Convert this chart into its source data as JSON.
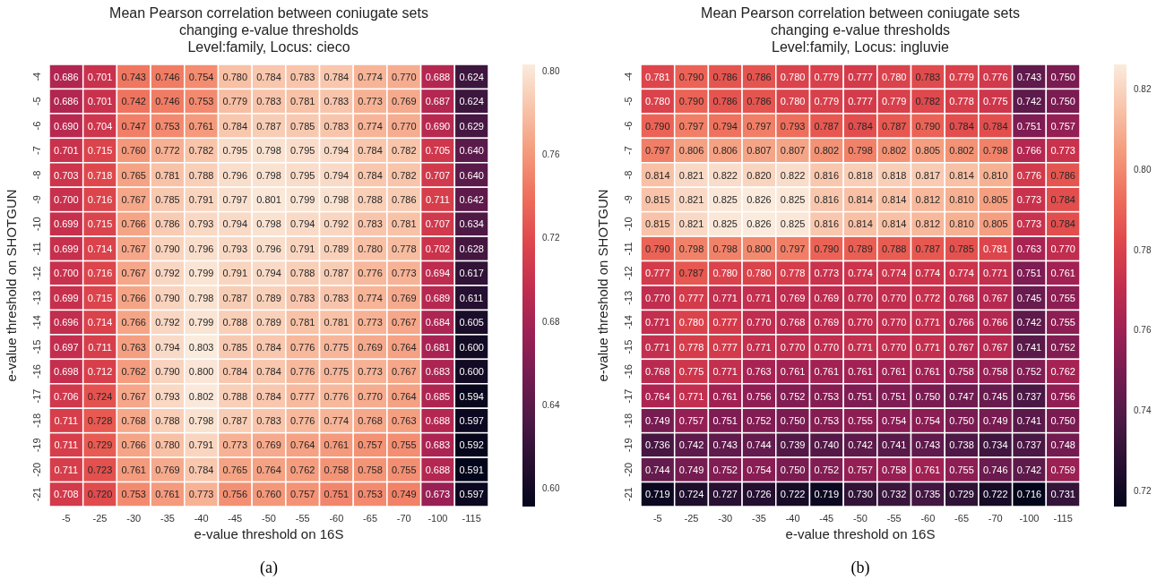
{
  "chart_data": [
    {
      "type": "heatmap",
      "title": "Mean Pearson correlation between coniugate sets\nchanging e-value thresholds\nLevel:family, Locus: cieco",
      "xlabel": "e-value threshold on 16S",
      "ylabel": "e-value threshold on SHOTGUN",
      "annotations": [
        "(a)"
      ],
      "categories": [
        "-5",
        "-25",
        "-30",
        "-35",
        "-40",
        "-45",
        "-50",
        "-55",
        "-60",
        "-65",
        "-70",
        "-100",
        "-115"
      ],
      "y_categories": [
        "-4",
        "-5",
        "-6",
        "-7",
        "-8",
        "-9",
        "-10",
        "-11",
        "-12",
        "-13",
        "-14",
        "-15",
        "-16",
        "-17",
        "-18",
        "-19",
        "-20",
        "-21"
      ],
      "clim": [
        0.591,
        0.803
      ],
      "cell_labels": [
        [
          "0.686",
          "0.701",
          "0.743",
          "0.746",
          "0.754",
          "0.780",
          "0.784",
          "0.783",
          "0.784",
          "0.774",
          "0.770",
          "0.688",
          "0.624"
        ],
        [
          "0.686",
          "0.701",
          "0.742",
          "0.746",
          "0.753",
          "0.779",
          "0.783",
          "0.781",
          "0.783",
          "0.773",
          "0.769",
          "0.687",
          "0.624"
        ],
        [
          "0.690",
          "0.704",
          "0.747",
          "0.753",
          "0.761",
          "0.784",
          "0.787",
          "0.785",
          "0.783",
          "0.774",
          "0.770",
          "0.690",
          "0.629"
        ],
        [
          "0.701",
          "0.715",
          "0.760",
          "0.772",
          "0.782",
          "0.795",
          "0.798",
          "0.795",
          "0.794",
          "0.784",
          "0.782",
          "0.705",
          "0.640"
        ],
        [
          "0.703",
          "0.718",
          "0.765",
          "0.781",
          "0.788",
          "0.796",
          "0.798",
          "0.795",
          "0.794",
          "0.784",
          "0.782",
          "0.707",
          "0.640"
        ],
        [
          "0.700",
          "0.716",
          "0.767",
          "0.785",
          "0.791",
          "0.797",
          "0.801",
          "0.799",
          "0.798",
          "0.788",
          "0.786",
          "0.711",
          "0.642"
        ],
        [
          "0.699",
          "0.715",
          "0.766",
          "0.786",
          "0.793",
          "0.794",
          "0.798",
          "0.794",
          "0.792",
          "0.783",
          "0.781",
          "0.707",
          "0.634"
        ],
        [
          "0.699",
          "0.714",
          "0.767",
          "0.790",
          "0.796",
          "0.793",
          "0.796",
          "0.791",
          "0.789",
          "0.780",
          "0.778",
          "0.702",
          "0.628"
        ],
        [
          "0.700",
          "0.716",
          "0.767",
          "0.792",
          "0.799",
          "0.791",
          "0.794",
          "0.788",
          "0.787",
          "0.776",
          "0.773",
          "0.694",
          "0.617"
        ],
        [
          "0.699",
          "0.715",
          "0.766",
          "0.790",
          "0.798",
          "0.787",
          "0.789",
          "0.783",
          "0.783",
          "0.774",
          "0.769",
          "0.689",
          "0.611"
        ],
        [
          "0.696",
          "0.714",
          "0.766",
          "0.792",
          "0.799",
          "0.788",
          "0.789",
          "0.781",
          "0.781",
          "0.773",
          "0.767",
          "0.684",
          "0.605"
        ],
        [
          "0.697",
          "0.711",
          "0.763",
          "0.794",
          "0.803",
          "0.785",
          "0.784",
          "0.776",
          "0.775",
          "0.769",
          "0.764",
          "0.681",
          "0.600"
        ],
        [
          "0.698",
          "0.712",
          "0.762",
          "0.790",
          "0.800",
          "0.784",
          "0.784",
          "0.776",
          "0.775",
          "0.773",
          "0.767",
          "0.683",
          "0.600"
        ],
        [
          "0.706",
          "0.724",
          "0.767",
          "0.793",
          "0.802",
          "0.788",
          "0.784",
          "0.777",
          "0.776",
          "0.770",
          "0.764",
          "0.685",
          "0.594"
        ],
        [
          "0.711",
          "0.728",
          "0.768",
          "0.788",
          "0.798",
          "0.787",
          "0.783",
          "0.776",
          "0.774",
          "0.768",
          "0.763",
          "0.688",
          "0.597"
        ],
        [
          "0.711",
          "0.729",
          "0.766",
          "0.780",
          "0.791",
          "0.773",
          "0.769",
          "0.764",
          "0.761",
          "0.757",
          "0.755",
          "0.683",
          "0.592"
        ],
        [
          "0.711",
          "0.723",
          "0.761",
          "0.769",
          "0.784",
          "0.765",
          "0.764",
          "0.762",
          "0.758",
          "0.758",
          "0.755",
          "0.688",
          "0.591"
        ],
        [
          "0.708",
          "0.720",
          "0.753",
          "0.761",
          "0.773",
          "0.756",
          "0.760",
          "0.757",
          "0.751",
          "0.753",
          "0.749",
          "0.673",
          "0.597"
        ]
      ],
      "cticks": [
        {
          "value": 0.6,
          "label": "0.60"
        },
        {
          "value": 0.64,
          "label": "0.64"
        },
        {
          "value": 0.68,
          "label": "0.68"
        },
        {
          "value": 0.72,
          "label": "0.72"
        },
        {
          "value": 0.76,
          "label": "0.76"
        },
        {
          "value": 0.8,
          "label": "0.80"
        }
      ],
      "cells": [
        [
          0.686,
          0.701,
          0.743,
          0.746,
          0.754,
          0.78,
          0.784,
          0.783,
          0.784,
          0.774,
          0.77,
          0.688,
          0.624
        ],
        [
          0.686,
          0.701,
          0.742,
          0.746,
          0.753,
          0.779,
          0.783,
          0.781,
          0.783,
          0.773,
          0.769,
          0.687,
          0.624
        ],
        [
          0.69,
          0.704,
          0.747,
          0.753,
          0.761,
          0.784,
          0.787,
          0.785,
          0.783,
          0.774,
          0.77,
          0.69,
          0.629
        ],
        [
          0.701,
          0.715,
          0.76,
          0.772,
          0.782,
          0.795,
          0.798,
          0.795,
          0.794,
          0.784,
          0.782,
          0.705,
          0.64
        ],
        [
          0.703,
          0.718,
          0.765,
          0.781,
          0.788,
          0.796,
          0.798,
          0.795,
          0.794,
          0.784,
          0.782,
          0.707,
          0.64
        ],
        [
          0.7,
          0.716,
          0.767,
          0.785,
          0.791,
          0.797,
          0.801,
          0.799,
          0.798,
          0.788,
          0.786,
          0.711,
          0.642
        ],
        [
          0.699,
          0.715,
          0.766,
          0.786,
          0.793,
          0.794,
          0.798,
          0.794,
          0.792,
          0.783,
          0.781,
          0.707,
          0.634
        ],
        [
          0.699,
          0.714,
          0.767,
          0.79,
          0.796,
          0.793,
          0.796,
          0.791,
          0.789,
          0.78,
          0.778,
          0.702,
          0.628
        ],
        [
          0.7,
          0.716,
          0.767,
          0.792,
          0.799,
          0.791,
          0.794,
          0.788,
          0.787,
          0.776,
          0.773,
          0.694,
          0.617
        ],
        [
          0.699,
          0.715,
          0.766,
          0.79,
          0.798,
          0.787,
          0.789,
          0.783,
          0.783,
          0.774,
          0.769,
          0.689,
          0.611
        ],
        [
          0.696,
          0.714,
          0.766,
          0.792,
          0.799,
          0.788,
          0.789,
          0.781,
          0.781,
          0.773,
          0.767,
          0.684,
          0.605
        ],
        [
          0.697,
          0.711,
          0.763,
          0.794,
          0.803,
          0.785,
          0.784,
          0.776,
          0.775,
          0.769,
          0.764,
          0.681,
          0.6
        ],
        [
          0.698,
          0.712,
          0.762,
          0.79,
          0.8,
          0.784,
          0.784,
          0.776,
          0.775,
          0.773,
          0.767,
          0.683,
          0.6
        ],
        [
          0.706,
          0.724,
          0.767,
          0.793,
          0.802,
          0.788,
          0.784,
          0.777,
          0.776,
          0.77,
          0.764,
          0.685,
          0.594
        ],
        [
          0.711,
          0.728,
          0.768,
          0.788,
          0.798,
          0.787,
          0.783,
          0.776,
          0.774,
          0.768,
          0.763,
          0.688,
          0.597
        ],
        [
          0.711,
          0.729,
          0.766,
          0.78,
          0.791,
          0.773,
          0.769,
          0.764,
          0.761,
          0.757,
          0.755,
          0.683,
          0.592
        ],
        [
          0.711,
          0.723,
          0.761,
          0.769,
          0.784,
          0.765,
          0.764,
          0.762,
          0.758,
          0.758,
          0.755,
          0.688,
          0.591
        ],
        [
          0.708,
          0.72,
          0.753,
          0.761,
          0.773,
          0.756,
          0.76,
          0.757,
          0.751,
          0.753,
          0.749,
          0.673,
          0.597
        ]
      ]
    },
    {
      "type": "heatmap",
      "title": "Mean Pearson correlation between coniugate sets\nchanging e-value thresholds\nLevel:family, Locus: ingluvie",
      "xlabel": "e-value threshold on 16S",
      "ylabel": "e-value threshold on SHOTGUN",
      "annotations": [
        "(b)"
      ],
      "categories": [
        "-5",
        "-25",
        "-30",
        "-35",
        "-40",
        "-45",
        "-50",
        "-55",
        "-60",
        "-65",
        "-70",
        "-100",
        "-115"
      ],
      "y_categories": [
        "-4",
        "-5",
        "-6",
        "-7",
        "-8",
        "-9",
        "-10",
        "-11",
        "-12",
        "-13",
        "-14",
        "-15",
        "-16",
        "-17",
        "-18",
        "-19",
        "-20",
        "-21"
      ],
      "clim": [
        0.716,
        0.826
      ],
      "cell_labels": [
        [
          "0.781",
          "0.790",
          "0.786",
          "0.786",
          "0.780",
          "0.779",
          "0.777",
          "0.780",
          "0.783",
          "0.779",
          "0.776",
          "0.743",
          "0.750"
        ],
        [
          "0.780",
          "0.790",
          "0.786",
          "0.786",
          "0.780",
          "0.779",
          "0.777",
          "0.779",
          "0.782",
          "0.778",
          "0.775",
          "0.742",
          "0.750"
        ],
        [
          "0.790",
          "0.797",
          "0.794",
          "0.797",
          "0.793",
          "0.787",
          "0.784",
          "0.787",
          "0.790",
          "0.784",
          "0.784",
          "0.751",
          "0.757"
        ],
        [
          "0.797",
          "0.806",
          "0.806",
          "0.807",
          "0.807",
          "0.802",
          "0.798",
          "0.802",
          "0.805",
          "0.802",
          "0.798",
          "0.766",
          "0.773"
        ],
        [
          "0.814",
          "0.821",
          "0.822",
          "0.820",
          "0.822",
          "0.816",
          "0.818",
          "0.818",
          "0.817",
          "0.814",
          "0.810",
          "0.776",
          "0.786"
        ],
        [
          "0.815",
          "0.821",
          "0.825",
          "0.826",
          "0.825",
          "0.816",
          "0.814",
          "0.814",
          "0.812",
          "0.810",
          "0.805",
          "0.773",
          "0.784"
        ],
        [
          "0.815",
          "0.821",
          "0.825",
          "0.826",
          "0.825",
          "0.816",
          "0.814",
          "0.814",
          "0.812",
          "0.810",
          "0.805",
          "0.773",
          "0.784"
        ],
        [
          "0.790",
          "0.798",
          "0.798",
          "0.800",
          "0.797",
          "0.790",
          "0.789",
          "0.788",
          "0.787",
          "0.785",
          "0.781",
          "0.763",
          "0.770"
        ],
        [
          "0.777",
          "0.787",
          "0.780",
          "0.780",
          "0.778",
          "0.773",
          "0.774",
          "0.774",
          "0.774",
          "0.774",
          "0.771",
          "0.751",
          "0.761"
        ],
        [
          "0.770",
          "0.777",
          "0.771",
          "0.771",
          "0.769",
          "0.769",
          "0.770",
          "0.770",
          "0.772",
          "0.768",
          "0.767",
          "0.745",
          "0.755"
        ],
        [
          "0.771",
          "0.780",
          "0.777",
          "0.770",
          "0.768",
          "0.769",
          "0.770",
          "0.770",
          "0.771",
          "0.766",
          "0.766",
          "0.742",
          "0.755"
        ],
        [
          "0.771",
          "0.778",
          "0.777",
          "0.771",
          "0.770",
          "0.770",
          "0.771",
          "0.770",
          "0.771",
          "0.767",
          "0.767",
          "0.741",
          "0.752"
        ],
        [
          "0.768",
          "0.775",
          "0.771",
          "0.763",
          "0.761",
          "0.761",
          "0.761",
          "0.761",
          "0.761",
          "0.758",
          "0.758",
          "0.752",
          "0.762"
        ],
        [
          "0.764",
          "0.771",
          "0.761",
          "0.756",
          "0.752",
          "0.753",
          "0.751",
          "0.751",
          "0.750",
          "0.747",
          "0.745",
          "0.737",
          "0.756"
        ],
        [
          "0.749",
          "0.757",
          "0.751",
          "0.752",
          "0.750",
          "0.753",
          "0.755",
          "0.754",
          "0.754",
          "0.750",
          "0.749",
          "0.741",
          "0.750"
        ],
        [
          "0.736",
          "0.742",
          "0.743",
          "0.744",
          "0.739",
          "0.740",
          "0.742",
          "0.741",
          "0.743",
          "0.738",
          "0.734",
          "0.737",
          "0.748"
        ],
        [
          "0.744",
          "0.749",
          "0.752",
          "0.754",
          "0.750",
          "0.752",
          "0.757",
          "0.758",
          "0.761",
          "0.755",
          "0.746",
          "0.742",
          "0.759"
        ],
        [
          "0.719",
          "0.724",
          "0.727",
          "0.726",
          "0.722",
          "0.719",
          "0.730",
          "0.732",
          "0.735",
          "0.729",
          "0.722",
          "0.716",
          "0.731"
        ]
      ],
      "cticks": [
        {
          "value": 0.72,
          "label": "0.72"
        },
        {
          "value": 0.74,
          "label": "0.74"
        },
        {
          "value": 0.76,
          "label": "0.76"
        },
        {
          "value": 0.78,
          "label": "0.78"
        },
        {
          "value": 0.8,
          "label": "0.80"
        },
        {
          "value": 0.82,
          "label": "0.82"
        }
      ],
      "cells": [
        [
          0.781,
          0.79,
          0.786,
          0.786,
          0.78,
          0.779,
          0.777,
          0.78,
          0.783,
          0.779,
          0.776,
          0.743,
          0.75
        ],
        [
          0.78,
          0.79,
          0.786,
          0.786,
          0.78,
          0.779,
          0.777,
          0.779,
          0.782,
          0.778,
          0.775,
          0.742,
          0.75
        ],
        [
          0.79,
          0.797,
          0.794,
          0.797,
          0.793,
          0.787,
          0.784,
          0.787,
          0.79,
          0.784,
          0.784,
          0.751,
          0.757
        ],
        [
          0.797,
          0.806,
          0.806,
          0.807,
          0.807,
          0.802,
          0.798,
          0.802,
          0.805,
          0.802,
          0.798,
          0.766,
          0.773
        ],
        [
          0.814,
          0.821,
          0.822,
          0.82,
          0.822,
          0.816,
          0.818,
          0.818,
          0.817,
          0.814,
          0.81,
          0.776,
          0.786
        ],
        [
          0.815,
          0.821,
          0.825,
          0.826,
          0.825,
          0.816,
          0.814,
          0.814,
          0.812,
          0.81,
          0.805,
          0.773,
          0.784
        ],
        [
          0.815,
          0.821,
          0.825,
          0.826,
          0.825,
          0.816,
          0.814,
          0.814,
          0.812,
          0.81,
          0.805,
          0.773,
          0.784
        ],
        [
          0.79,
          0.798,
          0.798,
          0.8,
          0.797,
          0.79,
          0.789,
          0.788,
          0.787,
          0.785,
          0.781,
          0.763,
          0.77
        ],
        [
          0.777,
          0.787,
          0.78,
          0.78,
          0.778,
          0.773,
          0.774,
          0.774,
          0.774,
          0.774,
          0.771,
          0.751,
          0.761
        ],
        [
          0.77,
          0.777,
          0.771,
          0.771,
          0.769,
          0.769,
          0.77,
          0.77,
          0.772,
          0.768,
          0.767,
          0.745,
          0.755
        ],
        [
          0.771,
          0.78,
          0.777,
          0.77,
          0.768,
          0.769,
          0.77,
          0.77,
          0.771,
          0.766,
          0.766,
          0.742,
          0.755
        ],
        [
          0.771,
          0.778,
          0.777,
          0.771,
          0.77,
          0.77,
          0.771,
          0.77,
          0.771,
          0.767,
          0.767,
          0.741,
          0.752
        ],
        [
          0.768,
          0.775,
          0.771,
          0.763,
          0.761,
          0.761,
          0.761,
          0.761,
          0.761,
          0.758,
          0.758,
          0.752,
          0.762
        ],
        [
          0.764,
          0.771,
          0.761,
          0.756,
          0.752,
          0.753,
          0.751,
          0.751,
          0.75,
          0.747,
          0.745,
          0.737,
          0.756
        ],
        [
          0.749,
          0.757,
          0.751,
          0.752,
          0.75,
          0.753,
          0.755,
          0.754,
          0.754,
          0.75,
          0.749,
          0.741,
          0.75
        ],
        [
          0.736,
          0.742,
          0.743,
          0.744,
          0.739,
          0.74,
          0.742,
          0.741,
          0.743,
          0.738,
          0.734,
          0.737,
          0.748
        ],
        [
          0.744,
          0.749,
          0.752,
          0.754,
          0.75,
          0.752,
          0.757,
          0.758,
          0.761,
          0.755,
          0.746,
          0.742,
          0.759
        ],
        [
          0.719,
          0.724,
          0.727,
          0.726,
          0.722,
          0.719,
          0.73,
          0.732,
          0.735,
          0.729,
          0.722,
          0.716,
          0.731
        ]
      ]
    }
  ]
}
